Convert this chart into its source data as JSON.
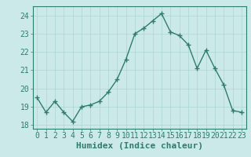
{
  "x": [
    0,
    1,
    2,
    3,
    4,
    5,
    6,
    7,
    8,
    9,
    10,
    11,
    12,
    13,
    14,
    15,
    16,
    17,
    18,
    19,
    20,
    21,
    22,
    23
  ],
  "y": [
    19.5,
    18.7,
    19.3,
    18.7,
    18.2,
    19.0,
    19.1,
    19.3,
    19.8,
    20.5,
    21.6,
    23.0,
    23.3,
    23.7,
    24.1,
    23.1,
    22.9,
    22.4,
    21.1,
    22.1,
    21.1,
    20.2,
    18.8,
    18.7
  ],
  "line_color": "#2d7d6e",
  "marker": "+",
  "marker_size": 4,
  "marker_linewidth": 1.0,
  "xlabel": "Humidex (Indice chaleur)",
  "ylim": [
    17.8,
    24.5
  ],
  "xlim": [
    -0.5,
    23.5
  ],
  "yticks": [
    18,
    19,
    20,
    21,
    22,
    23,
    24
  ],
  "xticks": [
    0,
    1,
    2,
    3,
    4,
    5,
    6,
    7,
    8,
    9,
    10,
    11,
    12,
    13,
    14,
    15,
    16,
    17,
    18,
    19,
    20,
    21,
    22,
    23
  ],
  "bg_color": "#cce9e9",
  "grid_color": "#aad4d4",
  "line_width": 1.0,
  "tick_fontsize": 7,
  "xlabel_fontsize": 8
}
